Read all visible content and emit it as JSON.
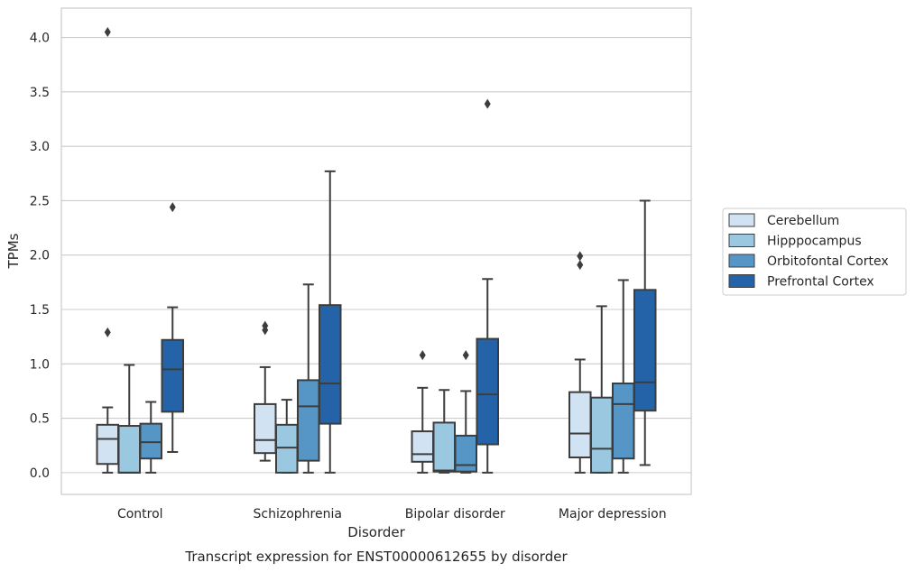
{
  "chart_data": {
    "type": "box",
    "xlabel": "Disorder",
    "ylabel": "TPMs",
    "caption": "Transcript expression for ENST00000612655 by disorder",
    "ylim": [
      -0.2,
      4.27
    ],
    "yticks": [
      "0.0",
      "0.5",
      "1.0",
      "1.5",
      "2.0",
      "2.5",
      "3.0",
      "3.5",
      "4.0"
    ],
    "grid": "horizontal",
    "legend_position": "right",
    "categories": [
      "Control",
      "Schizophrenia",
      "Bipolar disorder",
      "Major depression"
    ],
    "series": [
      {
        "name": "Cerebellum",
        "color": "#d1e2f2",
        "boxes": [
          {
            "whislo": 0.0,
            "q1": 0.08,
            "med": 0.31,
            "q3": 0.44,
            "whishi": 0.6,
            "fliers": [
              1.29,
              4.05
            ]
          },
          {
            "whislo": 0.11,
            "q1": 0.18,
            "med": 0.3,
            "q3": 0.63,
            "whishi": 0.97,
            "fliers": [
              1.31,
              1.35
            ]
          },
          {
            "whislo": 0.0,
            "q1": 0.1,
            "med": 0.17,
            "q3": 0.38,
            "whishi": 0.78,
            "fliers": [
              1.08
            ]
          },
          {
            "whislo": 0.0,
            "q1": 0.14,
            "med": 0.36,
            "q3": 0.74,
            "whishi": 1.04,
            "fliers": [
              1.91,
              1.99
            ]
          }
        ]
      },
      {
        "name": "Hipppocampus",
        "color": "#9ac8e0",
        "boxes": [
          {
            "whislo": 0.0,
            "q1": 0.0,
            "med": 0.0,
            "q3": 0.43,
            "whishi": 0.99,
            "fliers": []
          },
          {
            "whislo": 0.0,
            "q1": 0.0,
            "med": 0.23,
            "q3": 0.44,
            "whishi": 0.67,
            "fliers": []
          },
          {
            "whislo": 0.0,
            "q1": 0.01,
            "med": 0.02,
            "q3": 0.46,
            "whishi": 0.76,
            "fliers": []
          },
          {
            "whislo": 0.0,
            "q1": 0.0,
            "med": 0.22,
            "q3": 0.69,
            "whishi": 1.53,
            "fliers": []
          }
        ]
      },
      {
        "name": "Orbitofontal Cortex",
        "color": "#5596c7",
        "boxes": [
          {
            "whislo": 0.0,
            "q1": 0.13,
            "med": 0.28,
            "q3": 0.45,
            "whishi": 0.65,
            "fliers": []
          },
          {
            "whislo": 0.0,
            "q1": 0.11,
            "med": 0.61,
            "q3": 0.85,
            "whishi": 1.73,
            "fliers": []
          },
          {
            "whislo": 0.0,
            "q1": 0.01,
            "med": 0.07,
            "q3": 0.34,
            "whishi": 0.75,
            "fliers": [
              1.08
            ]
          },
          {
            "whislo": 0.0,
            "q1": 0.13,
            "med": 0.63,
            "q3": 0.82,
            "whishi": 1.77,
            "fliers": []
          }
        ]
      },
      {
        "name": "Prefrontal Cortex",
        "color": "#2563a8",
        "boxes": [
          {
            "whislo": 0.19,
            "q1": 0.56,
            "med": 0.95,
            "q3": 1.22,
            "whishi": 1.52,
            "fliers": [
              2.44
            ]
          },
          {
            "whislo": 0.0,
            "q1": 0.45,
            "med": 0.82,
            "q3": 1.54,
            "whishi": 2.77,
            "fliers": []
          },
          {
            "whislo": 0.0,
            "q1": 0.26,
            "med": 0.72,
            "q3": 1.23,
            "whishi": 1.78,
            "fliers": [
              3.39
            ]
          },
          {
            "whislo": 0.07,
            "q1": 0.57,
            "med": 0.83,
            "q3": 1.68,
            "whishi": 2.5,
            "fliers": []
          }
        ]
      }
    ]
  }
}
